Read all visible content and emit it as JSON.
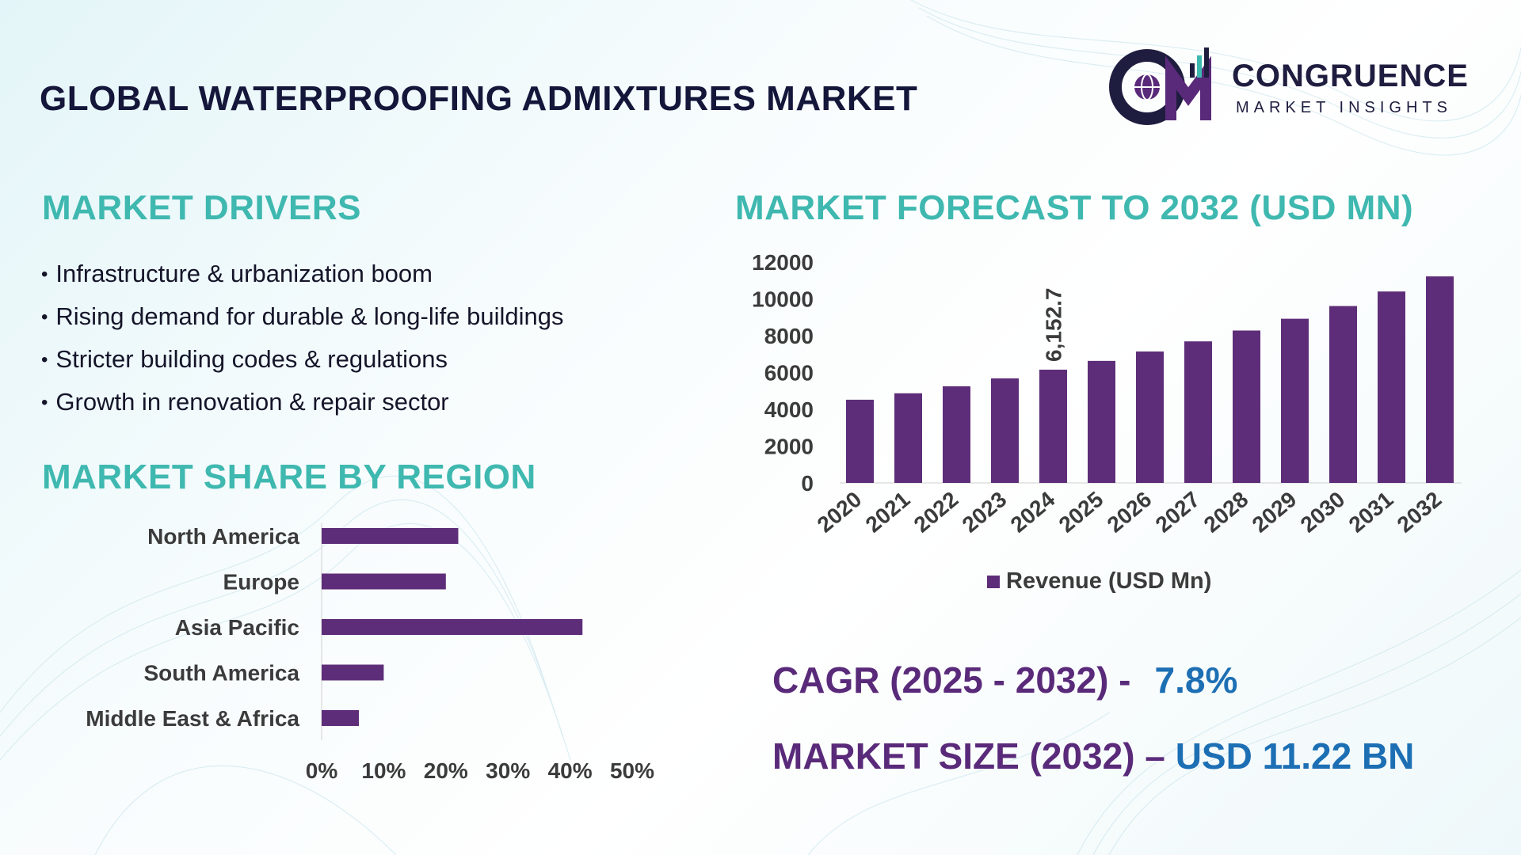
{
  "header": {
    "title": "GLOBAL WATERPROOFING ADMIXTURES MARKET",
    "logo_name": "CONGRUENCE",
    "logo_tagline": "MARKET INSIGHTS",
    "logo_icon": "cm-globe-chart-logo"
  },
  "drivers": {
    "title": "MARKET DRIVERS",
    "items": [
      "Infrastructure & urbanization boom",
      "Rising demand for durable & long-life buildings",
      "Stricter building codes & regulations",
      "Growth in renovation & repair sector"
    ]
  },
  "region": {
    "title": "MARKET SHARE BY REGION"
  },
  "forecast": {
    "title": "MARKET FORECAST TO 2032 (USD MN)",
    "legend": "Revenue (USD Mn)"
  },
  "stats": {
    "cagr_label": "CAGR (2025 - 2032) -",
    "cagr_value": "7.8%",
    "size_label": "MARKET SIZE (2032) –",
    "size_value": "USD 11.22 BN"
  },
  "colors": {
    "bar": "#5e2d79",
    "accent_teal": "#3fb8b0",
    "stat_purple": "#5a2a7a",
    "stat_blue": "#1d6fb4"
  },
  "chart_data": [
    {
      "type": "bar",
      "orientation": "horizontal",
      "title": "MARKET SHARE BY REGION",
      "categories": [
        "North America",
        "Europe",
        "Asia Pacific",
        "South America",
        "Middle East & Africa"
      ],
      "values": [
        22,
        20,
        42,
        10,
        6
      ],
      "xlim": [
        0,
        50
      ],
      "xticks": [
        "0%",
        "10%",
        "20%",
        "30%",
        "40%",
        "50%"
      ],
      "grid": false
    },
    {
      "type": "bar",
      "title": "MARKET FORECAST TO 2032 (USD MN)",
      "categories": [
        "2020",
        "2021",
        "2022",
        "2023",
        "2024",
        "2025",
        "2026",
        "2027",
        "2028",
        "2029",
        "2030",
        "2031",
        "2032"
      ],
      "series": [
        {
          "name": "Revenue (USD Mn)",
          "values": [
            4520,
            4870,
            5250,
            5680,
            6152.7,
            6630,
            7140,
            7690,
            8280,
            8920,
            9610,
            10400,
            11220
          ]
        }
      ],
      "data_labels": {
        "2024": "6,152.7"
      },
      "ylim": [
        0,
        12000
      ],
      "yticks": [
        "0",
        "2000",
        "4000",
        "6000",
        "8000",
        "10000",
        "12000"
      ],
      "legend": "bottom",
      "grid": false
    }
  ]
}
